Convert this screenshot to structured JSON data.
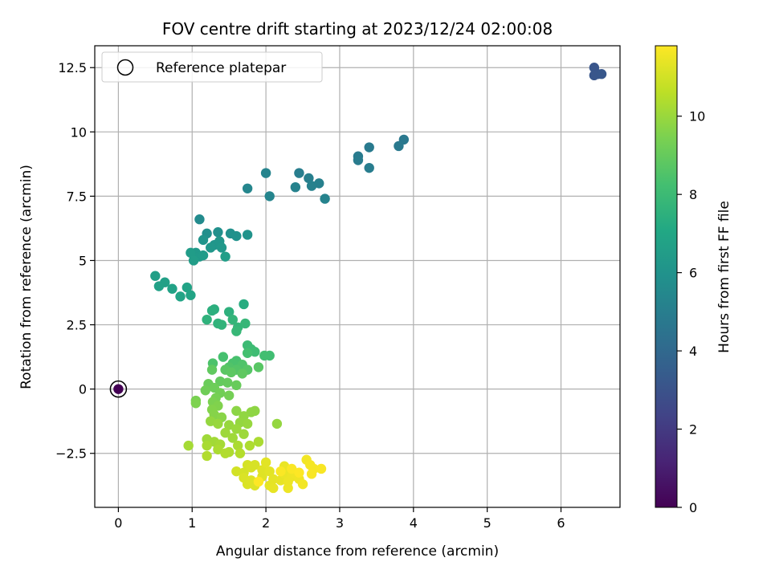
{
  "chart_data": {
    "type": "scatter",
    "title": "FOV centre drift starting at 2023/12/24 02:00:08",
    "xlabel": "Angular distance from reference (arcmin)",
    "ylabel": "Rotation from reference (arcmin)",
    "colorbar_label": "Hours from first FF file",
    "xlim": [
      -0.32,
      6.8
    ],
    "ylim": [
      -4.6,
      13.35
    ],
    "clim": [
      0,
      11.8
    ],
    "x_ticks": [
      0,
      1,
      2,
      3,
      4,
      5,
      6
    ],
    "y_ticks": [
      -2.5,
      0.0,
      2.5,
      5.0,
      7.5,
      10.0,
      12.5
    ],
    "colorbar_ticks": [
      0,
      2,
      4,
      6,
      8,
      10
    ],
    "grid": true,
    "legend": {
      "placement": "top-left",
      "entries": [
        "Reference platepar"
      ]
    },
    "reference_point": {
      "x": 0,
      "y": 0,
      "hours": 0
    },
    "points": [
      [
        6.45,
        12.5,
        3.1
      ],
      [
        6.5,
        12.25,
        3.1
      ],
      [
        6.45,
        12.2,
        3.15
      ],
      [
        6.55,
        12.25,
        3.2
      ],
      [
        3.87,
        9.7,
        4.7
      ],
      [
        3.8,
        9.45,
        4.75
      ],
      [
        3.4,
        9.4,
        4.8
      ],
      [
        3.25,
        9.05,
        4.85
      ],
      [
        3.25,
        8.9,
        4.9
      ],
      [
        3.4,
        8.6,
        4.95
      ],
      [
        2.45,
        8.4,
        5.0
      ],
      [
        2.58,
        8.2,
        5.05
      ],
      [
        2.72,
        8.0,
        5.1
      ],
      [
        2.62,
        7.9,
        5.15
      ],
      [
        2.4,
        7.85,
        5.2
      ],
      [
        2.8,
        7.4,
        5.25
      ],
      [
        2.0,
        8.4,
        5.3
      ],
      [
        2.05,
        7.5,
        5.35
      ],
      [
        1.75,
        7.8,
        5.4
      ],
      [
        1.1,
        6.6,
        5.6
      ],
      [
        1.2,
        6.05,
        5.8
      ],
      [
        1.35,
        6.1,
        5.85
      ],
      [
        1.52,
        6.05,
        5.9
      ],
      [
        1.6,
        5.95,
        5.95
      ],
      [
        1.75,
        6.0,
        6.0
      ],
      [
        1.15,
        5.8,
        6.05
      ],
      [
        1.3,
        5.6,
        6.1
      ],
      [
        1.37,
        5.75,
        6.15
      ],
      [
        1.25,
        5.5,
        6.2
      ],
      [
        1.4,
        5.5,
        6.25
      ],
      [
        1.05,
        5.3,
        6.3
      ],
      [
        1.1,
        5.15,
        6.35
      ],
      [
        1.15,
        5.2,
        6.4
      ],
      [
        0.98,
        5.3,
        6.45
      ],
      [
        1.02,
        5.0,
        6.5
      ],
      [
        1.45,
        5.15,
        6.55
      ],
      [
        0.5,
        4.4,
        6.6
      ],
      [
        0.63,
        4.15,
        6.65
      ],
      [
        0.55,
        4.0,
        6.7
      ],
      [
        0.73,
        3.9,
        6.75
      ],
      [
        0.93,
        3.95,
        6.8
      ],
      [
        0.84,
        3.6,
        6.85
      ],
      [
        0.98,
        3.65,
        6.9
      ],
      [
        1.7,
        3.3,
        7.3
      ],
      [
        1.3,
        3.1,
        7.4
      ],
      [
        1.27,
        3.05,
        7.45
      ],
      [
        1.5,
        3.0,
        7.5
      ],
      [
        1.2,
        2.7,
        7.55
      ],
      [
        1.35,
        2.55,
        7.6
      ],
      [
        1.4,
        2.5,
        7.65
      ],
      [
        1.55,
        2.7,
        7.7
      ],
      [
        1.62,
        2.4,
        7.75
      ],
      [
        1.72,
        2.55,
        7.8
      ],
      [
        1.6,
        2.25,
        7.85
      ],
      [
        1.75,
        1.7,
        8.0
      ],
      [
        1.8,
        1.55,
        8.05
      ],
      [
        1.85,
        1.45,
        8.1
      ],
      [
        2.05,
        1.3,
        8.15
      ],
      [
        1.98,
        1.3,
        8.2
      ],
      [
        1.75,
        1.4,
        8.25
      ],
      [
        1.42,
        1.25,
        8.3
      ],
      [
        1.6,
        1.1,
        8.35
      ],
      [
        1.55,
        1.0,
        8.4
      ],
      [
        1.28,
        1.0,
        8.45
      ],
      [
        1.68,
        0.95,
        8.5
      ],
      [
        1.5,
        0.85,
        8.55
      ],
      [
        1.6,
        0.75,
        8.6
      ],
      [
        1.75,
        0.75,
        8.65
      ],
      [
        1.9,
        0.85,
        8.7
      ],
      [
        1.45,
        0.75,
        8.75
      ],
      [
        1.53,
        0.65,
        8.8
      ],
      [
        1.68,
        0.6,
        8.85
      ],
      [
        1.27,
        0.75,
        8.9
      ],
      [
        1.38,
        0.3,
        8.95
      ],
      [
        1.48,
        0.25,
        9.0
      ],
      [
        1.6,
        0.15,
        9.05
      ],
      [
        1.22,
        0.2,
        9.1
      ],
      [
        1.3,
        0.05,
        9.15
      ],
      [
        1.18,
        -0.05,
        9.2
      ],
      [
        1.38,
        -0.15,
        9.25
      ],
      [
        1.5,
        -0.25,
        9.3
      ],
      [
        1.32,
        -0.35,
        9.35
      ],
      [
        1.05,
        -0.45,
        9.4
      ],
      [
        1.28,
        -0.5,
        9.45
      ],
      [
        1.05,
        -0.55,
        9.5
      ],
      [
        1.35,
        -0.65,
        9.55
      ],
      [
        1.27,
        -0.8,
        9.6
      ],
      [
        1.3,
        -1.0,
        9.65
      ],
      [
        1.4,
        -1.1,
        9.7
      ],
      [
        1.6,
        -0.85,
        9.75
      ],
      [
        1.8,
        -0.9,
        9.8
      ],
      [
        1.7,
        -1.05,
        9.85
      ],
      [
        1.85,
        -0.85,
        9.8
      ],
      [
        1.25,
        -1.25,
        9.9
      ],
      [
        1.35,
        -1.35,
        9.95
      ],
      [
        1.5,
        -1.4,
        9.95
      ],
      [
        1.65,
        -1.3,
        9.9
      ],
      [
        1.75,
        -1.35,
        9.95
      ],
      [
        1.6,
        -1.55,
        10.0
      ],
      [
        1.45,
        -1.7,
        10.05
      ],
      [
        1.55,
        -1.9,
        10.1
      ],
      [
        1.7,
        -1.75,
        10.05
      ],
      [
        2.15,
        -1.35,
        9.9
      ],
      [
        1.2,
        -1.95,
        10.1
      ],
      [
        1.3,
        -2.05,
        10.15
      ],
      [
        1.38,
        -2.15,
        10.2
      ],
      [
        0.95,
        -2.2,
        10.2
      ],
      [
        1.2,
        -2.2,
        10.25
      ],
      [
        1.35,
        -2.35,
        10.3
      ],
      [
        1.5,
        -2.45,
        10.35
      ],
      [
        1.62,
        -2.2,
        10.3
      ],
      [
        1.9,
        -2.05,
        10.3
      ],
      [
        1.78,
        -2.2,
        10.35
      ],
      [
        1.45,
        -2.5,
        10.4
      ],
      [
        1.2,
        -2.6,
        10.4
      ],
      [
        1.65,
        -2.5,
        10.45
      ],
      [
        1.6,
        -3.2,
        11.0
      ],
      [
        1.7,
        -3.25,
        11.05
      ],
      [
        1.75,
        -2.95,
        11.05
      ],
      [
        1.85,
        -2.95,
        11.1
      ],
      [
        1.8,
        -3.05,
        11.1
      ],
      [
        1.7,
        -3.45,
        11.15
      ],
      [
        1.75,
        -3.7,
        11.15
      ],
      [
        1.8,
        -3.55,
        11.2
      ],
      [
        1.85,
        -3.75,
        11.2
      ],
      [
        1.95,
        -3.4,
        11.25
      ],
      [
        1.95,
        -3.15,
        11.25
      ],
      [
        2.0,
        -2.85,
        11.3
      ],
      [
        2.05,
        -3.2,
        11.3
      ],
      [
        2.1,
        -3.5,
        11.35
      ],
      [
        2.05,
        -3.75,
        11.35
      ],
      [
        2.1,
        -3.85,
        11.4
      ],
      [
        2.2,
        -3.55,
        11.4
      ],
      [
        2.25,
        -3.3,
        11.45
      ],
      [
        2.25,
        -3.0,
        11.45
      ],
      [
        2.3,
        -3.6,
        11.5
      ],
      [
        2.35,
        -3.4,
        11.5
      ],
      [
        2.3,
        -3.85,
        11.5
      ],
      [
        2.4,
        -3.3,
        11.55
      ],
      [
        2.45,
        -3.5,
        11.55
      ],
      [
        2.5,
        -3.7,
        11.6
      ],
      [
        2.55,
        -2.75,
        11.6
      ],
      [
        2.6,
        -2.95,
        11.65
      ],
      [
        2.65,
        -3.1,
        11.65
      ],
      [
        2.62,
        -3.3,
        11.7
      ],
      [
        2.75,
        -3.1,
        11.7
      ],
      [
        2.2,
        -3.2,
        11.75
      ],
      [
        2.35,
        -3.1,
        11.75
      ],
      [
        2.45,
        -3.25,
        11.8
      ],
      [
        1.9,
        -3.6,
        11.8
      ]
    ]
  }
}
